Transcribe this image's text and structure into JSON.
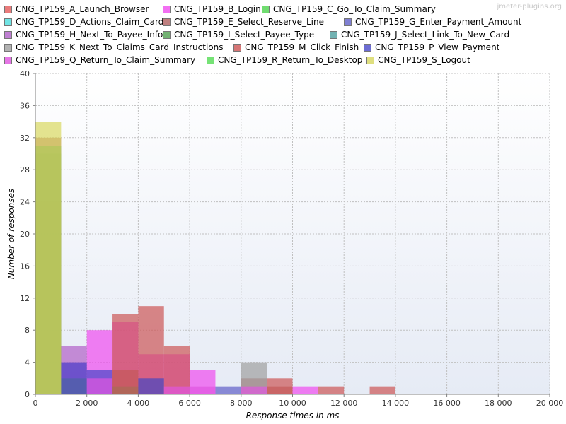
{
  "watermark": "jmeter-plugins.org",
  "chart_data": {
    "type": "bar",
    "xlabel": "Response times in ms",
    "ylabel": "Number of responses",
    "xlim": [
      0,
      20000
    ],
    "ylim": [
      0,
      40
    ],
    "bin_width": 1000,
    "x_ticks": [
      "0",
      "2 000",
      "4 000",
      "6 000",
      "8 000",
      "10 000",
      "12 000",
      "14 000",
      "16 000",
      "18 000",
      "20 000"
    ],
    "y_ticks": [
      "0",
      "4",
      "8",
      "12",
      "16",
      "20",
      "24",
      "28",
      "32",
      "36",
      "40"
    ],
    "grid": true,
    "legend_position": "top",
    "series": [
      {
        "name": "CNG_TP159_A_Launch_Browser",
        "color": "#e55b5b",
        "bins": [
          [
            0,
            24
          ]
        ]
      },
      {
        "name": "CNG_TP159_B_Login",
        "color": "#f04cf0",
        "bins": [
          [
            1000,
            4
          ],
          [
            2000,
            8
          ],
          [
            3000,
            9
          ],
          [
            4000,
            5
          ],
          [
            5000,
            5
          ],
          [
            6000,
            3
          ],
          [
            10000,
            1
          ]
        ]
      },
      {
        "name": "CNG_TP159_C_Go_To_Claim_Summary",
        "color": "#4dd44d",
        "bins": [
          [
            0,
            30
          ]
        ]
      },
      {
        "name": "CNG_TP159_D_Actions_Claim_Card",
        "color": "#4ddede",
        "bins": [
          [
            0,
            0
          ]
        ]
      },
      {
        "name": "CNG_TP159_E_Select_Reserve_Line",
        "color": "#b06060",
        "bins": [
          [
            0,
            32
          ],
          [
            3000,
            3
          ],
          [
            8000,
            2
          ],
          [
            9000,
            1
          ]
        ]
      },
      {
        "name": "CNG_TP159_G_Enter_Payment_Amount",
        "color": "#6060c8",
        "bins": [
          [
            0,
            0
          ],
          [
            7000,
            1
          ]
        ]
      },
      {
        "name": "CNG_TP159_H_Next_To_Payee_Info",
        "color": "#b060c8",
        "bins": [
          [
            1000,
            6
          ],
          [
            4000,
            2
          ]
        ]
      },
      {
        "name": "CNG_TP159_I_Select_Payee_Type",
        "color": "#50a050",
        "bins": [
          [
            0,
            31
          ],
          [
            1000,
            2
          ],
          [
            3000,
            1
          ]
        ]
      },
      {
        "name": "CNG_TP159_J_Select_Link_To_New_Card",
        "color": "#50a0a0",
        "bins": [
          [
            0,
            0
          ]
        ]
      },
      {
        "name": "CNG_TP159_K_Next_To_Claims_Card_Instructions",
        "color": "#a0a0a0",
        "bins": [
          [
            0,
            0
          ],
          [
            8000,
            4
          ]
        ]
      },
      {
        "name": "CNG_TP159_M_Click_Finish",
        "color": "#cc5555",
        "bins": [
          [
            3000,
            10
          ],
          [
            4000,
            11
          ],
          [
            5000,
            6
          ],
          [
            9000,
            2
          ],
          [
            11000,
            1
          ],
          [
            13000,
            1
          ]
        ]
      },
      {
        "name": "CNG_TP159_P_View_Payment",
        "color": "#4848c8",
        "bins": [
          [
            1000,
            4
          ],
          [
            2000,
            3
          ],
          [
            4000,
            2
          ]
        ]
      },
      {
        "name": "CNG_TP159_Q_Return_To_Claim_Summary",
        "color": "#e055e0",
        "bins": [
          [
            2000,
            2
          ],
          [
            5000,
            1
          ],
          [
            6000,
            1
          ],
          [
            8000,
            1
          ]
        ]
      },
      {
        "name": "CNG_TP159_R_Return_To_Desktop",
        "color": "#55dd55",
        "bins": [
          [
            0,
            0
          ]
        ]
      },
      {
        "name": "CNG_TP159_S_Logout",
        "color": "#d8d860",
        "bins": [
          [
            0,
            34
          ]
        ]
      }
    ]
  }
}
